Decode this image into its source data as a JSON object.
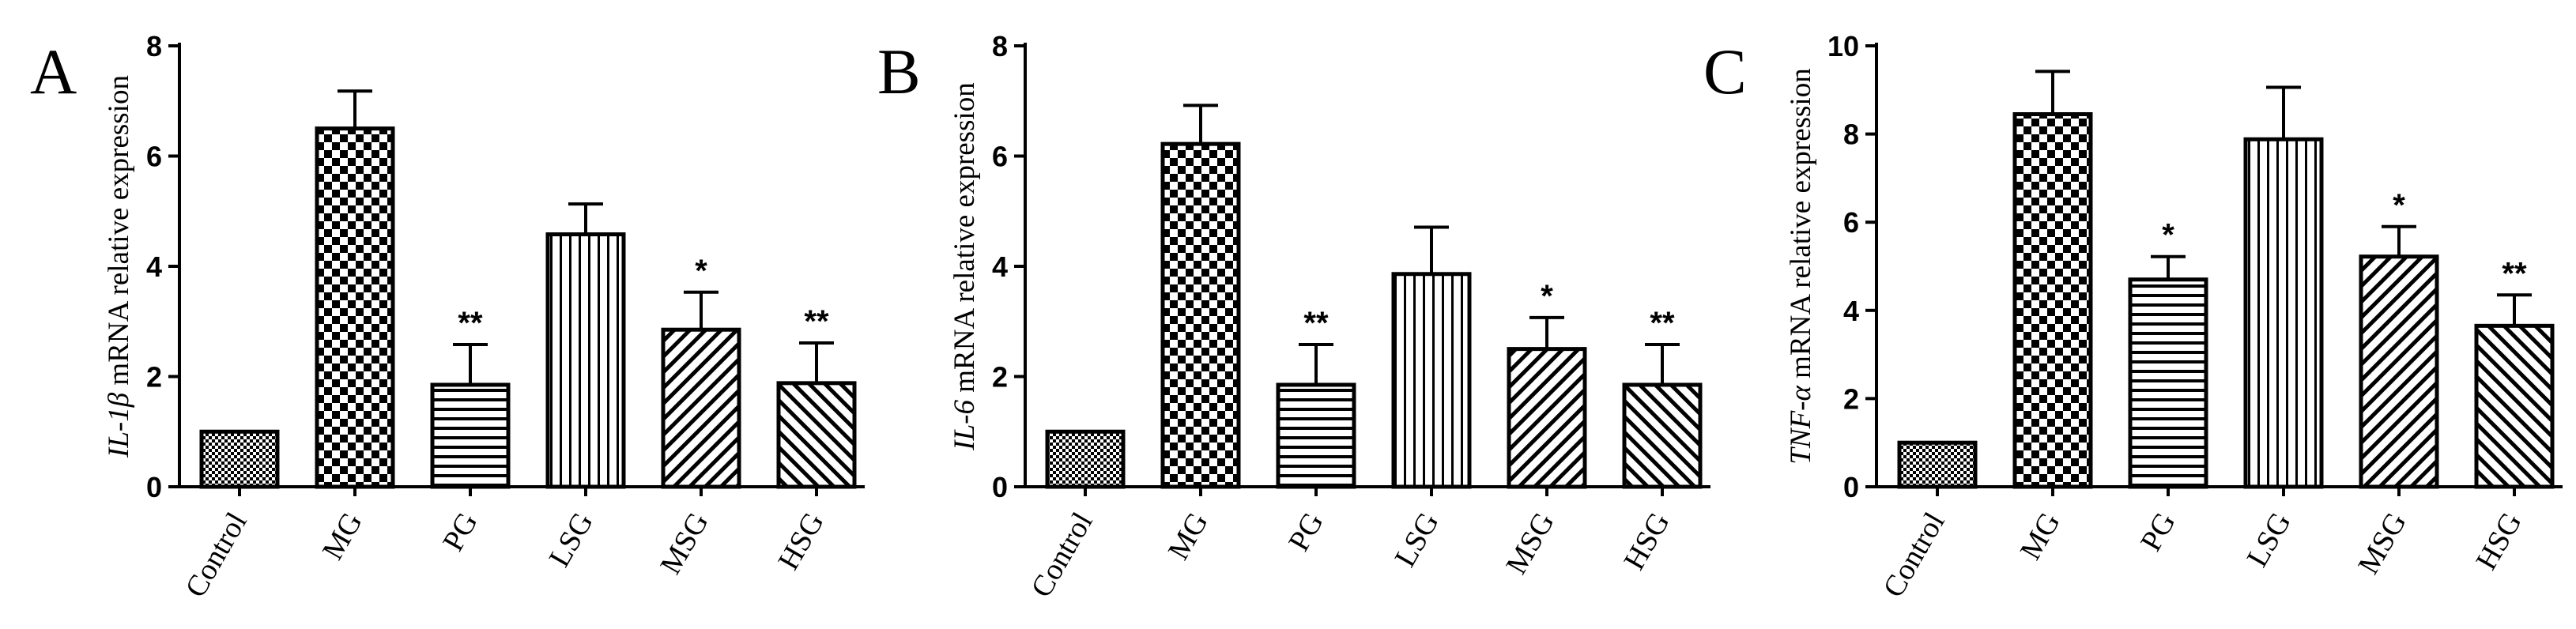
{
  "chart_data": [
    {
      "type": "bar",
      "panel_label": "A",
      "ylabel_gene": "IL-1β",
      "ylabel_rest": " mRNA relative expression",
      "categories": [
        "Control",
        "MG",
        "PG",
        "LSG",
        "MSG",
        "HSG"
      ],
      "values": [
        1.0,
        6.5,
        1.85,
        4.58,
        2.85,
        1.88
      ],
      "errors": [
        0,
        0.68,
        0.73,
        0.55,
        0.68,
        0.73
      ],
      "significance": [
        "",
        "",
        "**",
        "",
        "*",
        "**"
      ],
      "patterns": [
        "fine-check",
        "checker",
        "horizontal",
        "vertical",
        "diag-right",
        "diag-left"
      ],
      "ylim": [
        0,
        8
      ],
      "yticks": [
        "0",
        "2",
        "4",
        "6",
        "8"
      ],
      "grid": false
    },
    {
      "type": "bar",
      "panel_label": "B",
      "ylabel_gene": "IL-6",
      "ylabel_rest": " mRNA relative expression",
      "categories": [
        "Control",
        "MG",
        "PG",
        "LSG",
        "MSG",
        "HSG"
      ],
      "values": [
        1.0,
        6.22,
        1.85,
        3.86,
        2.5,
        1.85
      ],
      "errors": [
        0,
        0.7,
        0.73,
        0.85,
        0.57,
        0.73
      ],
      "significance": [
        "",
        "",
        "**",
        "",
        "*",
        "**"
      ],
      "patterns": [
        "fine-check",
        "checker",
        "horizontal",
        "vertical",
        "diag-right",
        "diag-left"
      ],
      "ylim": [
        0,
        8
      ],
      "yticks": [
        "0",
        "2",
        "4",
        "6",
        "8"
      ],
      "grid": false
    },
    {
      "type": "bar",
      "panel_label": "C",
      "ylabel_gene": "TNF-α",
      "ylabel_rest": " mRNA relative expression",
      "categories": [
        "Control",
        "MG",
        "PG",
        "LSG",
        "MSG",
        "HSG"
      ],
      "values": [
        1.0,
        8.45,
        4.7,
        7.88,
        5.22,
        3.65
      ],
      "errors": [
        0,
        0.97,
        0.52,
        1.18,
        0.68,
        0.7
      ],
      "significance": [
        "",
        "",
        "*",
        "",
        "*",
        "**"
      ],
      "patterns": [
        "fine-check",
        "checker",
        "horizontal",
        "vertical",
        "diag-right",
        "diag-left"
      ],
      "ylim": [
        0,
        10
      ],
      "yticks": [
        "0",
        "2",
        "4",
        "6",
        "8",
        "10"
      ],
      "grid": false
    }
  ]
}
